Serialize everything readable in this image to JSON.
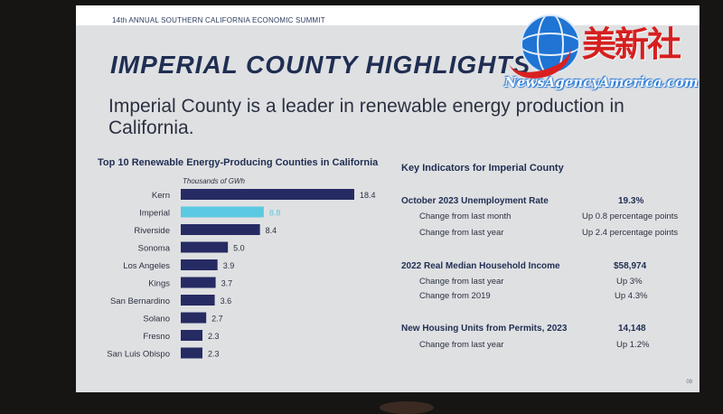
{
  "slide": {
    "summit": "14th ANNUAL SOUTHERN CALIFORNIA ECONOMIC SUMMIT",
    "headline": "IMPERIAL COUNTY HIGHLIGHTS",
    "subline": "Imperial County is a leader in renewable energy production in California.",
    "page_number": "09"
  },
  "watermark": {
    "chinese": "美新社",
    "url": "NewsAgencyAmerica.com"
  },
  "chart_data": {
    "type": "bar",
    "orientation": "horizontal",
    "title": "Top 10 Renewable Energy-Producing Counties in California",
    "units_label": "Thousands of GWh",
    "categories": [
      "Kern",
      "Imperial",
      "Riverside",
      "Sonoma",
      "Los Angeles",
      "Kings",
      "San Bernardino",
      "Solano",
      "Fresno",
      "San Luis Obispo"
    ],
    "values": [
      18.4,
      8.8,
      8.4,
      5.0,
      3.9,
      3.7,
      3.6,
      2.7,
      2.3,
      2.3
    ],
    "value_labels": [
      "18.4",
      "8.8",
      "8.4",
      "5.0",
      "3.9",
      "3.7",
      "3.6",
      "2.7",
      "2.3",
      "2.3"
    ],
    "highlight_index": 1,
    "colors": {
      "bar": "#262b63",
      "highlight": "#5cc9e2",
      "highlight_label": "#5cc9e2",
      "label": "#2b3140"
    },
    "xlim": [
      0,
      18.4
    ]
  },
  "indicators": {
    "title": "Key Indicators for Imperial County",
    "groups": [
      {
        "label": "October 2023 Unemployment Rate",
        "value": "19.3%",
        "rows": [
          {
            "label": "Change from last month",
            "value": "Up 0.8 percentage points"
          },
          {
            "label": "Change from last year",
            "value": "Up 2.4 percentage points"
          }
        ]
      },
      {
        "label": "2022 Real Median Household Income",
        "value": "$58,974",
        "rows": [
          {
            "label": "Change from last year",
            "value": "Up 3%"
          },
          {
            "label": "Change from 2019",
            "value": "Up 4.3%"
          }
        ]
      },
      {
        "label": "New Housing Units from Permits, 2023",
        "value": "14,148",
        "rows": [
          {
            "label": "Change from last year",
            "value": "Up 1.2%"
          }
        ]
      }
    ]
  }
}
